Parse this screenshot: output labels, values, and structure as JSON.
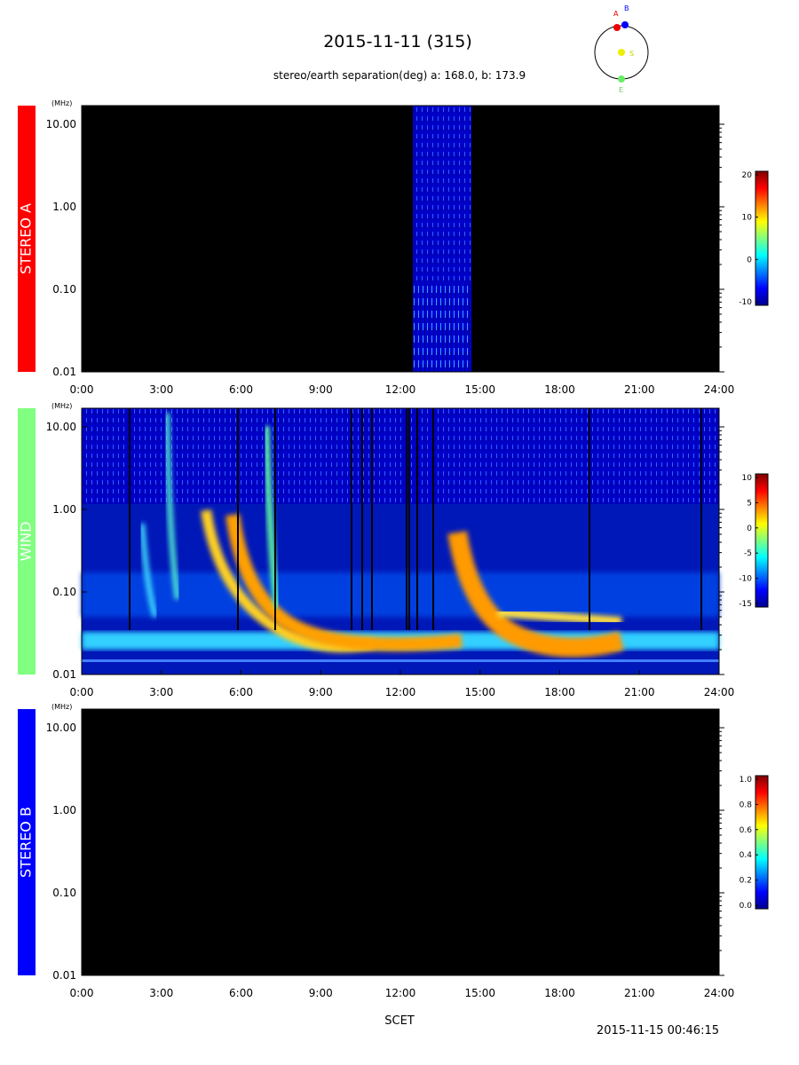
{
  "header": {
    "title": "2015-11-11 (315)",
    "subtitle": "stereo/earth separation(deg) a: 168.0, b: 173.9",
    "orbit_labels": {
      "a": "A",
      "b": "B",
      "s": "S",
      "e": "E"
    }
  },
  "panels": [
    {
      "name": "STEREO A",
      "color": "#ff0000",
      "y_unit": "(MHz)",
      "yticks": [
        "10.00",
        "1.00",
        "0.10",
        "0.01"
      ],
      "xticks": [
        "0:00",
        "3:00",
        "6:00",
        "9:00",
        "12:00",
        "15:00",
        "18:00",
        "21:00",
        "24:00"
      ],
      "colorbar_ticks": [
        "20",
        "10",
        "0",
        "-10"
      ]
    },
    {
      "name": "WIND",
      "color": "#80ff80",
      "y_unit": "(MHz)",
      "yticks": [
        "10.00",
        "1.00",
        "0.10",
        "0.01"
      ],
      "xticks": [
        "0:00",
        "3:00",
        "6:00",
        "9:00",
        "12:00",
        "15:00",
        "18:00",
        "21:00",
        "24:00"
      ],
      "colorbar_ticks": [
        "10",
        "5",
        "0",
        "-5",
        "-10",
        "-15"
      ]
    },
    {
      "name": "STEREO B",
      "color": "#0000ff",
      "y_unit": "(MHz)",
      "yticks": [
        "10.00",
        "1.00",
        "0.10",
        "0.01"
      ],
      "xticks": [
        "0:00",
        "3:00",
        "6:00",
        "9:00",
        "12:00",
        "15:00",
        "18:00",
        "21:00",
        "24:00"
      ],
      "colorbar_ticks": [
        "1.0",
        "0.8",
        "0.6",
        "0.4",
        "0.2",
        "0.0"
      ]
    }
  ],
  "x_label": "SCET",
  "timestamp": "2015-11-15 00:46:15"
}
